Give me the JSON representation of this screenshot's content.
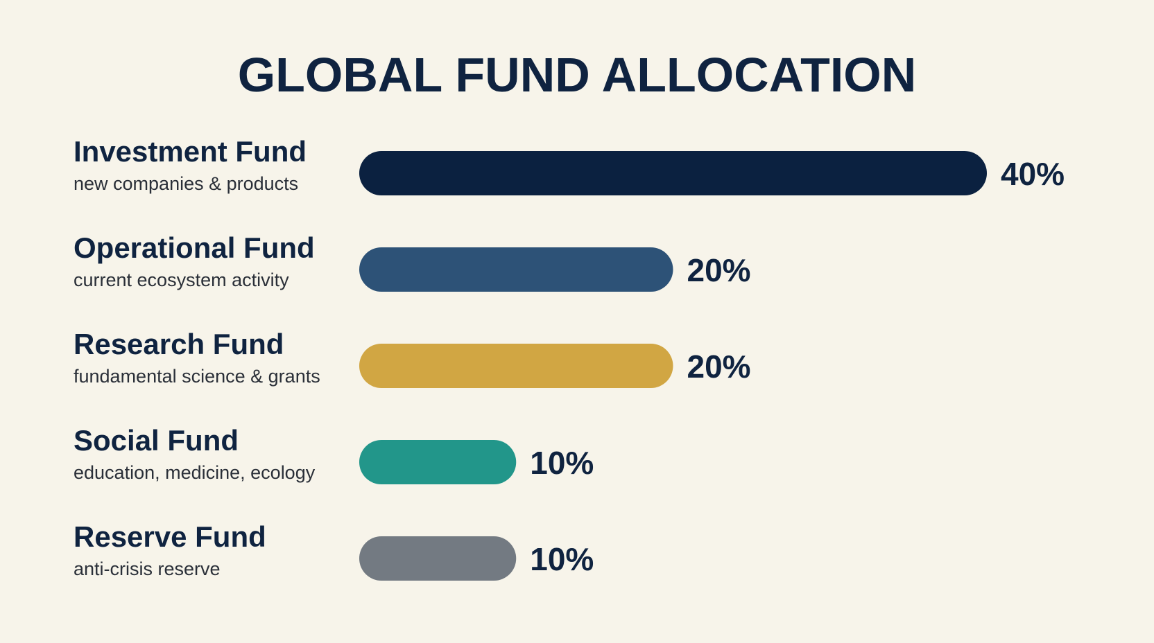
{
  "chart_data": {
    "type": "bar",
    "orientation": "horizontal",
    "title": "GLOBAL FUND ALLOCATION",
    "categories": [
      "Investment Fund",
      "Operational Fund",
      "Research Fund",
      "Social Fund",
      "Reserve Fund"
    ],
    "descriptions": [
      "new companies & products",
      "current ecosystem activity",
      "fundamental science & grants",
      "education, medicine, ecology",
      "anti-crisis reserve"
    ],
    "values": [
      40,
      20,
      20,
      10,
      10
    ],
    "value_labels": [
      "40%",
      "20%",
      "20%",
      "10%",
      "10%"
    ],
    "colors": [
      "#0b2140",
      "#2d5277",
      "#d1a643",
      "#22968a",
      "#737a82"
    ]
  }
}
